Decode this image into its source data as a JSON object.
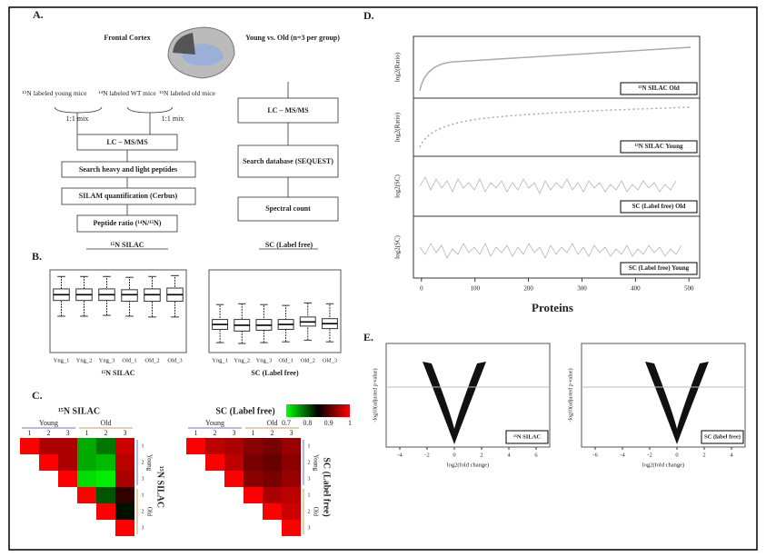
{
  "panels": {
    "A": {
      "label": "A.",
      "region": "Frontal Cortex",
      "design": "Young vs. Old (n=3 per group)",
      "mice": [
        "¹⁵N labeled young mice",
        "¹⁴N labeled WT mice",
        "¹⁵N labeled old mice"
      ],
      "mix": [
        "1:1 mix",
        "1:1 mix"
      ],
      "silac_steps": [
        "LC – MS/MS",
        "Search heavy and light peptides",
        "SILAM quantification (Cerbus)",
        "Peptide ratio (¹⁴N/¹⁵N)"
      ],
      "silac_title": "¹⁵N SILAC",
      "lf_steps": [
        "LC – MS/MS",
        "Search database (SEQUEST)",
        "Spectral count"
      ],
      "lf_title": "SC (Label free)"
    },
    "B": {
      "label": "B.",
      "groups": [
        "Yng_1",
        "Yng_2",
        "Yng_3",
        "Old_1",
        "Old_2",
        "Old_3"
      ],
      "ylim": [
        0,
        10
      ],
      "plots": [
        {
          "title": "¹⁵N SILAC",
          "boxes": [
            {
              "low": 4.4,
              "q1": 6.3,
              "median": 7.0,
              "q3": 7.7,
              "high": 9.2
            },
            {
              "low": 4.4,
              "q1": 6.3,
              "median": 7.0,
              "q3": 7.7,
              "high": 9.2
            },
            {
              "low": 4.5,
              "q1": 6.3,
              "median": 7.0,
              "q3": 7.7,
              "high": 9.2
            },
            {
              "low": 4.4,
              "q1": 6.2,
              "median": 7.0,
              "q3": 7.6,
              "high": 9.1
            },
            {
              "low": 4.3,
              "q1": 6.2,
              "median": 7.0,
              "q3": 7.7,
              "high": 9.2
            },
            {
              "low": 4.3,
              "q1": 6.2,
              "median": 7.0,
              "q3": 7.8,
              "high": 9.3
            }
          ]
        },
        {
          "title": "SC (Label free)",
          "boxes": [
            {
              "low": 1.2,
              "q1": 2.8,
              "median": 3.4,
              "q3": 4.0,
              "high": 5.8
            },
            {
              "low": 1.1,
              "q1": 2.6,
              "median": 3.3,
              "q3": 4.0,
              "high": 5.9
            },
            {
              "low": 1.2,
              "q1": 2.7,
              "median": 3.3,
              "q3": 4.0,
              "high": 5.8
            },
            {
              "low": 1.3,
              "q1": 2.8,
              "median": 3.4,
              "q3": 4.0,
              "high": 5.7
            },
            {
              "low": 1.5,
              "q1": 3.2,
              "median": 3.7,
              "q3": 4.3,
              "high": 6.0
            },
            {
              "low": 1.3,
              "q1": 2.9,
              "median": 3.5,
              "q3": 4.1,
              "high": 5.9
            }
          ]
        }
      ]
    },
    "C": {
      "label": "C.",
      "groups": [
        "Young",
        "Old"
      ],
      "replicates": [
        1,
        2,
        3,
        1,
        2,
        3
      ],
      "legend_ticks": [
        0.7,
        0.8,
        0.9,
        1
      ],
      "colorscale": [
        "#00ff00",
        "#000000",
        "#ff0000"
      ],
      "matrices": [
        {
          "title": "¹⁵N SILAC",
          "values": [
            [
              1,
              0.95,
              0.95,
              0.75,
              0.78,
              0.97
            ],
            [
              null,
              1,
              0.95,
              0.75,
              0.74,
              0.96
            ],
            [
              null,
              null,
              1,
              0.72,
              0.71,
              0.95
            ],
            [
              null,
              null,
              null,
              1,
              0.8,
              0.88
            ],
            [
              null,
              null,
              null,
              null,
              1,
              0.84
            ],
            [
              null,
              null,
              null,
              null,
              null,
              1
            ]
          ]
        },
        {
          "title": "SC (Label free)",
          "values": [
            [
              1,
              0.96,
              0.95,
              0.93,
              0.92,
              0.94
            ],
            [
              null,
              1,
              0.96,
              0.92,
              0.91,
              0.93
            ],
            [
              null,
              null,
              1,
              0.93,
              0.92,
              0.94
            ],
            [
              null,
              null,
              null,
              1,
              0.95,
              0.96
            ],
            [
              null,
              null,
              null,
              null,
              1,
              0.97
            ],
            [
              null,
              null,
              null,
              null,
              null,
              1
            ]
          ]
        }
      ]
    },
    "D": {
      "label": "D.",
      "xlim": [
        -15,
        520
      ],
      "xticks": [
        0,
        100,
        200,
        300,
        400,
        500
      ],
      "xlabel": "Proteins",
      "strips": [
        {
          "ylabel": "log2(Ratio)",
          "name": "¹⁵N SILAC Old"
        },
        {
          "ylabel": "log2(Ratio)",
          "name": "¹⁵N SILAC Young"
        },
        {
          "ylabel": "log2(SC)",
          "name": "SC (Label free) Old"
        },
        {
          "ylabel": "log2(SC)",
          "name": "SC (Label free) Young"
        }
      ]
    },
    "E": {
      "label": "E.",
      "plots": [
        {
          "name": "¹⁵N SILAC",
          "xlabel": "log2(fold change)",
          "ylabel": "-log10(adjusted p-value)",
          "xlim": [
            -5,
            7
          ],
          "xticks": [
            -4,
            -2,
            0,
            2,
            4,
            6
          ]
        },
        {
          "name": "SC (label free)",
          "xlabel": "log2(fold change)",
          "ylabel": "-log10(adjusted p-value)",
          "xlim": [
            -7,
            5
          ],
          "xticks": [
            -6,
            -4,
            -2,
            0,
            2,
            4
          ]
        }
      ]
    }
  }
}
